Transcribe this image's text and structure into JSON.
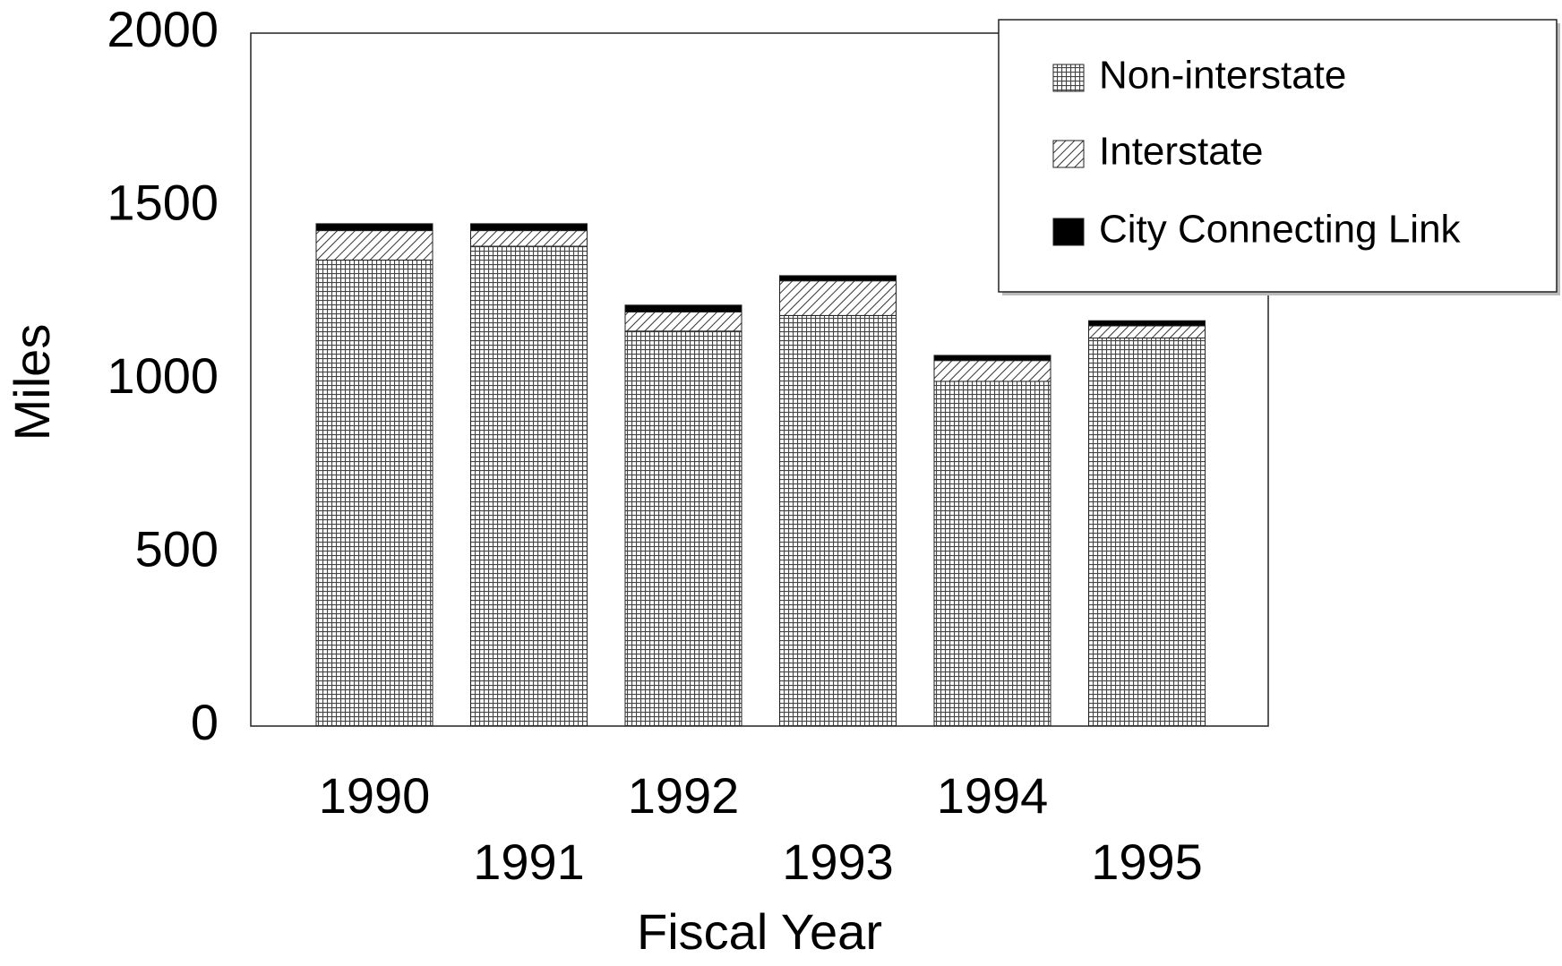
{
  "chart_data": {
    "type": "stacked_bar",
    "xlabel": "Fiscal Year",
    "ylabel": "Miles",
    "categories": [
      "1990",
      "1991",
      "1992",
      "1993",
      "1994",
      "1995"
    ],
    "series": [
      {
        "name": "Non-interstate",
        "color": "#000000",
        "pattern": "crosshatch",
        "values": [
          1345,
          1385,
          1140,
          1185,
          995,
          1120
        ]
      },
      {
        "name": "Interstate",
        "color": "#000000",
        "pattern": "diagonal",
        "values": [
          85,
          45,
          55,
          100,
          60,
          35
        ]
      },
      {
        "name": "City Connecting Link",
        "color": "#000000",
        "pattern": "solid",
        "values": [
          20,
          20,
          20,
          15,
          15,
          15
        ]
      }
    ],
    "ylim": [
      0,
      2000
    ],
    "yticks": [
      0,
      500,
      1000,
      1500,
      2000
    ],
    "grid": false,
    "legend": "upper right"
  }
}
